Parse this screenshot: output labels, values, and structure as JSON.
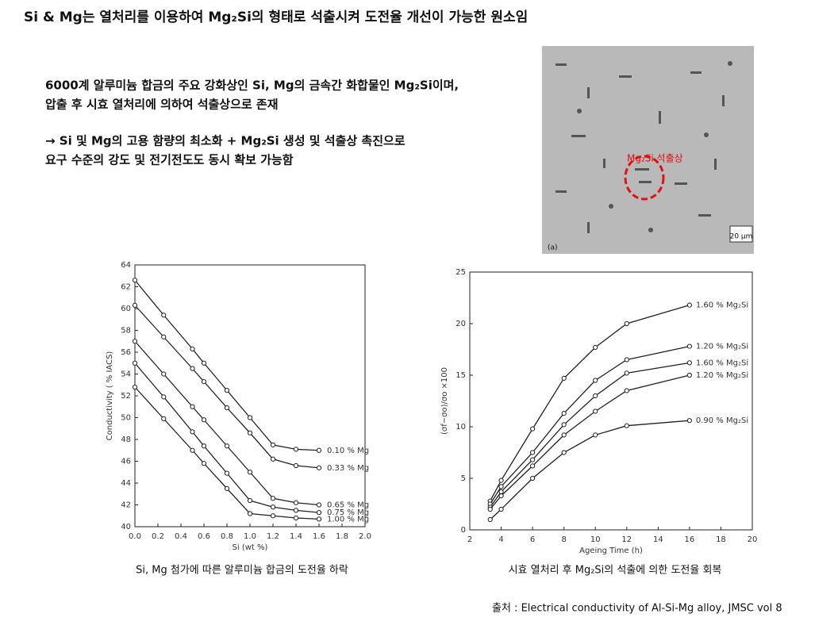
{
  "title": "Si & Mg는 열처리를 이용하여 Mg₂Si의 형태로 석출시켜 도전율 개선이 가능한 원소임",
  "body": {
    "lines": [
      "6000계 알루미늄 합금의 주요 강화상인 Si, Mg의 금속간 화합물인 Mg₂Si이며,",
      "압출 후 시효 열처리에 의하여 석출상으로 존재",
      "→ Si 및 Mg의 고용 함량의 최소화 + Mg₂Si 생성 및 석출상 촉진으로",
      "요구 수준의 강도 및 전기전도도 동시 확보 가능함"
    ]
  },
  "micrograph": {
    "annotation": "Mg₂Si 석출상",
    "scale": "20 μm",
    "panel": "(a)"
  },
  "chart_data": [
    {
      "type": "line",
      "xlabel": "Si (wt %)",
      "ylabel": "Conductivity ( % IACS)",
      "x": [
        0,
        0.25,
        0.5,
        0.6,
        0.8,
        1.0,
        1.2,
        1.4,
        1.6
      ],
      "xlim": [
        0,
        2.0
      ],
      "xticks": [
        {
          "value": 0,
          "label": "0.0"
        },
        0.2,
        0.4,
        0.6,
        0.8,
        {
          "value": 1,
          "label": "1.0"
        },
        1.2,
        1.4,
        1.6,
        1.8,
        {
          "value": 2,
          "label": "2.0"
        }
      ],
      "ylim": [
        40,
        64
      ],
      "yticks": [
        40,
        42,
        44,
        46,
        48,
        50,
        52,
        54,
        56,
        58,
        60,
        62,
        64
      ],
      "series": [
        {
          "name": "0.10 % Mg",
          "color": "#222222",
          "values": [
            62.6,
            59.4,
            56.3,
            55.0,
            52.5,
            50.0,
            47.5,
            47.1,
            47.0
          ]
        },
        {
          "name": "0.33 % Mg",
          "color": "#222222",
          "values": [
            60.3,
            57.4,
            54.5,
            53.3,
            50.9,
            48.6,
            46.2,
            45.6,
            45.4
          ]
        },
        {
          "name": "0.65 % Mg",
          "color": "#222222",
          "values": [
            57.0,
            54.0,
            51.0,
            49.8,
            47.4,
            45.0,
            42.6,
            42.2,
            42.0
          ]
        },
        {
          "name": "0.75 % Mg",
          "color": "#222222",
          "values": [
            55.0,
            51.9,
            48.7,
            47.4,
            44.9,
            42.4,
            41.8,
            41.5,
            41.3
          ]
        },
        {
          "name": "1.00 % Mg",
          "color": "#222222",
          "values": [
            52.8,
            49.9,
            47.0,
            45.8,
            43.5,
            41.2,
            41.0,
            40.8,
            40.7
          ]
        }
      ],
      "caption": "Si, Mg 첨가에 따른 알루미늄 합금의 도전율 하락"
    },
    {
      "type": "line",
      "xlabel": "Ageing Time (h)",
      "ylabel": "(σf−σo)/σo ×100",
      "x": [
        3.3,
        4,
        6,
        8,
        10,
        12,
        16
      ],
      "xlim": [
        2,
        20
      ],
      "xticks": [
        2,
        4,
        6,
        8,
        10,
        12,
        14,
        16,
        18,
        20
      ],
      "ylim": [
        0,
        25
      ],
      "yticks": [
        0,
        5,
        10,
        15,
        20,
        25
      ],
      "series": [
        {
          "name": "1.60 % Mg₂Si",
          "color": "#222222",
          "values": [
            2.8,
            4.8,
            9.8,
            14.7,
            17.7,
            20.0,
            21.8
          ]
        },
        {
          "name": "1.20 % Mg₂Si",
          "color": "#222222",
          "values": [
            2.5,
            4.2,
            7.5,
            11.3,
            14.5,
            16.5,
            17.8
          ]
        },
        {
          "name": "1.60 % Mg₂Si",
          "color": "#222222",
          "values": [
            2.2,
            3.7,
            6.8,
            10.2,
            13.0,
            15.2,
            16.2
          ]
        },
        {
          "name": "1.20 % Mg₂Si",
          "color": "#222222",
          "values": [
            2.0,
            3.3,
            6.2,
            9.2,
            11.5,
            13.5,
            15.0
          ]
        },
        {
          "name": "0.90 % Mg₂Si",
          "color": "#222222",
          "values": [
            1.0,
            2.0,
            5.0,
            7.5,
            9.2,
            10.1,
            10.6
          ]
        }
      ],
      "caption": "시효 열처리 후 Mg₂Si의 석출에 의한 도전율 회복"
    }
  ],
  "source": "출처 : Electrical conductivity of Al-Si-Mg alloy, JMSC vol 8"
}
